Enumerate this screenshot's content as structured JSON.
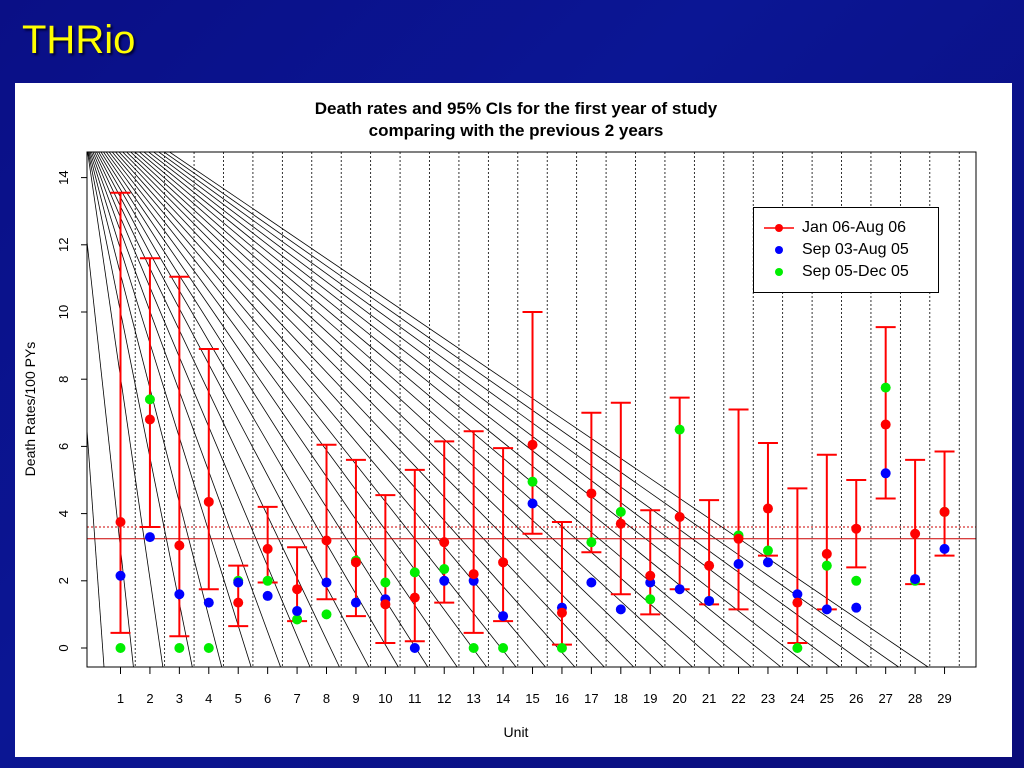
{
  "slide": {
    "title": "THRio"
  },
  "chart_data": {
    "type": "scatter",
    "title": "Death rates and 95% CIs for the first year of study",
    "subtitle": "comparing with the previous 2 years",
    "xlabel": "Unit",
    "ylabel": "Death Rates/100 PYs",
    "categories": [
      "1",
      "2",
      "3",
      "4",
      "5",
      "6",
      "7",
      "8",
      "9",
      "10",
      "11",
      "12",
      "13",
      "14",
      "15",
      "16",
      "17",
      "18",
      "19",
      "20",
      "21",
      "22",
      "23",
      "24",
      "25",
      "26",
      "27",
      "28",
      "29"
    ],
    "ylim": [
      0,
      14
    ],
    "yticks": [
      0,
      2,
      4,
      6,
      8,
      10,
      12,
      14
    ],
    "reference_lines": [
      3.25,
      3.6
    ],
    "legend_position": "top-right",
    "series": [
      {
        "name": "Jan 06-Aug 06",
        "color": "#ff0000",
        "values": [
          3.75,
          6.8,
          3.05,
          4.35,
          1.35,
          2.95,
          1.75,
          3.2,
          2.55,
          1.3,
          1.5,
          3.15,
          2.2,
          2.55,
          6.05,
          1.05,
          4.6,
          3.7,
          2.15,
          3.9,
          2.45,
          3.25,
          4.15,
          1.35,
          2.8,
          3.55,
          6.65,
          3.4,
          4.05
        ],
        "ci_lower": [
          0.45,
          3.6,
          0.35,
          1.75,
          0.65,
          1.95,
          0.8,
          1.45,
          0.95,
          0.15,
          0.2,
          1.35,
          0.45,
          0.8,
          3.4,
          0.1,
          2.85,
          1.6,
          1.0,
          1.75,
          1.3,
          1.15,
          2.75,
          0.15,
          1.15,
          2.4,
          4.45,
          1.9,
          2.75
        ],
        "ci_upper": [
          13.55,
          11.6,
          11.05,
          8.9,
          2.45,
          4.2,
          3.0,
          6.05,
          5.6,
          4.55,
          5.3,
          6.15,
          6.45,
          5.95,
          10.0,
          3.75,
          7.0,
          7.3,
          4.1,
          7.45,
          4.4,
          7.1,
          6.1,
          4.75,
          5.75,
          5.0,
          9.55,
          5.6,
          5.85
        ]
      },
      {
        "name": "Sep 03-Aug 05",
        "color": "#0000ff",
        "values": [
          2.15,
          3.3,
          1.6,
          1.35,
          1.95,
          1.55,
          1.1,
          1.95,
          1.35,
          1.45,
          0.0,
          2.0,
          2.0,
          0.95,
          4.3,
          1.2,
          1.95,
          1.15,
          1.95,
          1.75,
          1.4,
          2.5,
          2.55,
          1.6,
          1.15,
          1.2,
          5.2,
          2.05,
          2.95
        ]
      },
      {
        "name": "Sep 05-Dec 05",
        "color": "#00ee00",
        "values": [
          0.0,
          7.4,
          0.0,
          0.0,
          2.0,
          2.0,
          0.85,
          1.0,
          2.6,
          1.95,
          2.25,
          2.35,
          0.0,
          0.0,
          4.95,
          0.0,
          3.15,
          4.05,
          1.45,
          6.5,
          1.4,
          3.35,
          2.9,
          0.0,
          2.45,
          2.0,
          7.75,
          2.0,
          4.05
        ]
      }
    ]
  }
}
